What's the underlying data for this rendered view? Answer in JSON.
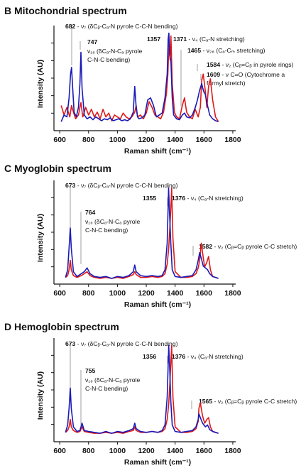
{
  "figure": {
    "panel_tick_labels": [
      "600",
      "800",
      "1000",
      "1200",
      "1400",
      "1600",
      "1800"
    ]
  },
  "chart_data": [
    {
      "type": "line",
      "panel": "B",
      "title": "Mitochondrial spectrum",
      "xlabel": "Raman shift (cm⁻¹)",
      "ylabel": "Intensity (AU)",
      "xlim": [
        560,
        1820
      ],
      "xticks": [
        600,
        800,
        1000,
        1200,
        1400,
        1600,
        1800
      ],
      "series_colors": [
        "#1a1ab8",
        "#e01818"
      ],
      "series": [
        {
          "color": "#1a1ab8",
          "x": [
            610,
            630,
            650,
            665,
            675,
            682,
            690,
            700,
            715,
            730,
            740,
            747,
            755,
            770,
            790,
            810,
            830,
            850,
            870,
            890,
            910,
            930,
            950,
            970,
            990,
            1010,
            1030,
            1050,
            1070,
            1090,
            1110,
            1120,
            1130,
            1140,
            1150,
            1170,
            1190,
            1210,
            1230,
            1250,
            1270,
            1290,
            1310,
            1330,
            1345,
            1352,
            1357,
            1363,
            1371,
            1380,
            1390,
            1410,
            1430,
            1450,
            1465,
            1480,
            1500,
            1520,
            1540,
            1555,
            1570,
            1584,
            1592,
            1600,
            1609,
            1620,
            1640,
            1660,
            1680,
            1700
          ],
          "y": [
            0.05,
            0.12,
            0.1,
            0.3,
            0.55,
            0.62,
            0.4,
            0.15,
            0.1,
            0.2,
            0.45,
            0.78,
            0.4,
            0.12,
            0.08,
            0.1,
            0.07,
            0.1,
            0.08,
            0.06,
            0.08,
            0.07,
            0.09,
            0.06,
            0.07,
            0.08,
            0.06,
            0.07,
            0.06,
            0.08,
            0.15,
            0.42,
            0.2,
            0.1,
            0.08,
            0.09,
            0.12,
            0.28,
            0.3,
            0.22,
            0.1,
            0.12,
            0.14,
            0.3,
            0.55,
            0.92,
            0.98,
            0.75,
            0.68,
            0.3,
            0.12,
            0.08,
            0.07,
            0.12,
            0.14,
            0.1,
            0.09,
            0.12,
            0.2,
            0.28,
            0.38,
            0.45,
            0.4,
            0.36,
            0.34,
            0.25,
            0.12,
            0.08,
            0.06,
            0.05
          ]
        },
        {
          "color": "#e01818",
          "x": [
            610,
            630,
            650,
            670,
            682,
            695,
            710,
            730,
            747,
            760,
            780,
            800,
            820,
            840,
            860,
            880,
            900,
            920,
            940,
            960,
            980,
            1000,
            1020,
            1040,
            1060,
            1080,
            1100,
            1120,
            1130,
            1140,
            1160,
            1180,
            1200,
            1220,
            1240,
            1260,
            1280,
            1300,
            1320,
            1340,
            1350,
            1357,
            1365,
            1371,
            1380,
            1395,
            1410,
            1430,
            1450,
            1465,
            1480,
            1500,
            1520,
            1540,
            1560,
            1575,
            1584,
            1595,
            1609,
            1620,
            1632,
            1645,
            1660,
            1680,
            1700
          ],
          "y": [
            0.22,
            0.12,
            0.2,
            0.1,
            0.22,
            0.15,
            0.08,
            0.12,
            0.25,
            0.1,
            0.2,
            0.12,
            0.18,
            0.1,
            0.15,
            0.08,
            0.18,
            0.1,
            0.14,
            0.06,
            0.12,
            0.1,
            0.08,
            0.14,
            0.1,
            0.08,
            0.1,
            0.15,
            0.22,
            0.1,
            0.12,
            0.08,
            0.14,
            0.26,
            0.2,
            0.12,
            0.1,
            0.08,
            0.15,
            0.35,
            0.55,
            0.88,
            0.7,
            0.95,
            0.45,
            0.15,
            0.1,
            0.08,
            0.22,
            0.3,
            0.15,
            0.1,
            0.08,
            0.18,
            0.1,
            0.2,
            0.48,
            0.55,
            0.38,
            0.2,
            0.42,
            0.5,
            0.28,
            0.1,
            0.05
          ]
        }
      ],
      "annotations": [
        {
          "peak": 682,
          "bold": "682",
          "text": " - ν₇ (δCᵦ-Cₐ-N pyrole C-C-N bending)",
          "line2": ""
        },
        {
          "peak": 747,
          "bold": "747",
          "text": "ν₁₆ (δCₐ-N-Cₐ pyrole",
          "line2": "C-N-C bending)"
        },
        {
          "peak": 1357,
          "bold": "1357",
          "text": "",
          "line2": ""
        },
        {
          "peak": 1371,
          "bold": "1371",
          "text": " - ν₄ (Cₐ-N stretching)",
          "line2": ""
        },
        {
          "peak": 1465,
          "bold": "1465",
          "text": " - ν₂₈ (Cₐ-Cₘ stretching)",
          "line2": ""
        },
        {
          "peak": 1584,
          "bold": "1584",
          "text": " - ν₂ (Cᵦ=Cᵦ in pyrole rings)",
          "line2": ""
        },
        {
          "peak": 1609,
          "bold": "1609",
          "text": " - ν C=O (Cytochrome a",
          "line2": "formyl stretch)"
        }
      ]
    },
    {
      "type": "line",
      "panel": "C",
      "title": "Myoglobin spectrum",
      "xlabel": "Raman shift (cm⁻¹)",
      "ylabel": "Intensity (AU)",
      "xlim": [
        560,
        1820
      ],
      "xticks": [
        600,
        800,
        1000,
        1200,
        1400,
        1600,
        1800
      ],
      "series_colors": [
        "#1a1ab8",
        "#e01818"
      ],
      "series": [
        {
          "color": "#1a1ab8",
          "x": [
            640,
            655,
            665,
            673,
            680,
            695,
            720,
            750,
            770,
            790,
            810,
            840,
            880,
            920,
            960,
            1000,
            1040,
            1080,
            1110,
            1120,
            1130,
            1160,
            1200,
            1240,
            1280,
            1310,
            1330,
            1345,
            1355,
            1362,
            1370,
            1380,
            1400,
            1440,
            1480,
            1520,
            1545,
            1560,
            1570,
            1582,
            1595,
            1610,
            1625,
            1640,
            1660,
            1680,
            1700
          ],
          "y": [
            0.04,
            0.12,
            0.35,
            0.56,
            0.35,
            0.1,
            0.05,
            0.08,
            0.1,
            0.14,
            0.08,
            0.05,
            0.04,
            0.05,
            0.03,
            0.05,
            0.04,
            0.06,
            0.1,
            0.17,
            0.1,
            0.06,
            0.05,
            0.06,
            0.05,
            0.06,
            0.12,
            0.4,
            0.98,
            0.7,
            0.4,
            0.12,
            0.05,
            0.04,
            0.05,
            0.06,
            0.12,
            0.22,
            0.3,
            0.24,
            0.16,
            0.14,
            0.12,
            0.08,
            0.05,
            0.04,
            0.03
          ]
        },
        {
          "color": "#e01818",
          "x": [
            640,
            655,
            665,
            673,
            680,
            695,
            720,
            750,
            770,
            790,
            810,
            840,
            880,
            920,
            960,
            1000,
            1040,
            1080,
            1110,
            1120,
            1130,
            1160,
            1200,
            1240,
            1280,
            1310,
            1330,
            1345,
            1356,
            1363,
            1370,
            1376,
            1385,
            1400,
            1440,
            1480,
            1520,
            1545,
            1560,
            1570,
            1582,
            1592,
            1605,
            1620,
            1632,
            1645,
            1660,
            1680,
            1700
          ],
          "y": [
            0.04,
            0.06,
            0.12,
            0.22,
            0.12,
            0.06,
            0.04,
            0.06,
            0.08,
            0.1,
            0.06,
            0.04,
            0.03,
            0.04,
            0.03,
            0.04,
            0.03,
            0.05,
            0.07,
            0.1,
            0.07,
            0.04,
            0.04,
            0.05,
            0.04,
            0.05,
            0.08,
            0.18,
            0.35,
            0.55,
            0.75,
            0.98,
            0.45,
            0.1,
            0.04,
            0.04,
            0.05,
            0.08,
            0.14,
            0.22,
            0.4,
            0.28,
            0.15,
            0.2,
            0.26,
            0.12,
            0.05,
            0.04,
            0.03
          ]
        }
      ],
      "annotations": [
        {
          "peak": 673,
          "bold": "673",
          "text": " - ν₇ (δCᵦ-Cₐ-N pyrole C-C-N bending)",
          "line2": ""
        },
        {
          "peak": 764,
          "bold": "764",
          "text": "ν₁₆ (δCₐ-N-Cₐ pyrole",
          "line2": "C-N-C bending)"
        },
        {
          "peak": 1355,
          "bold": "1355",
          "text": "",
          "line2": ""
        },
        {
          "peak": 1376,
          "bold": "1376",
          "text": " - ν₄ (Cₐ-N stretching)",
          "line2": ""
        },
        {
          "peak": 1582,
          "bold": "1582",
          "text": " - ν₂ (Cᵦ=Cᵦ pyrole C-C stretch)",
          "line2": ""
        }
      ]
    },
    {
      "type": "line",
      "panel": "D",
      "title": "Hemoglobin spectrum",
      "xlabel": "Raman shift (cm⁻¹)",
      "ylabel": "Intensity (AU)",
      "xlim": [
        560,
        1820
      ],
      "xticks": [
        600,
        800,
        1000,
        1200,
        1400,
        1600,
        1800
      ],
      "series_colors": [
        "#1a1ab8",
        "#e01818"
      ],
      "series": [
        {
          "color": "#1a1ab8",
          "x": [
            640,
            655,
            665,
            673,
            680,
            695,
            720,
            740,
            755,
            770,
            800,
            840,
            880,
            920,
            960,
            1000,
            1040,
            1080,
            1110,
            1120,
            1130,
            1160,
            1200,
            1240,
            1280,
            1310,
            1330,
            1345,
            1356,
            1363,
            1370,
            1380,
            1400,
            1440,
            1480,
            1520,
            1545,
            1560,
            1565,
            1575,
            1590,
            1610,
            1625,
            1640,
            1660,
            1680,
            1700
          ],
          "y": [
            0.04,
            0.12,
            0.3,
            0.52,
            0.3,
            0.1,
            0.05,
            0.06,
            0.14,
            0.06,
            0.05,
            0.04,
            0.03,
            0.05,
            0.03,
            0.05,
            0.04,
            0.06,
            0.08,
            0.14,
            0.08,
            0.05,
            0.04,
            0.05,
            0.04,
            0.06,
            0.12,
            0.42,
            0.98,
            0.72,
            0.38,
            0.12,
            0.05,
            0.04,
            0.05,
            0.06,
            0.1,
            0.18,
            0.24,
            0.2,
            0.14,
            0.1,
            0.12,
            0.07,
            0.05,
            0.04,
            0.03
          ]
        },
        {
          "color": "#e01818",
          "x": [
            640,
            655,
            665,
            673,
            680,
            695,
            720,
            740,
            755,
            770,
            800,
            840,
            880,
            920,
            960,
            1000,
            1040,
            1080,
            1110,
            1120,
            1130,
            1160,
            1200,
            1240,
            1280,
            1310,
            1330,
            1345,
            1356,
            1363,
            1370,
            1376,
            1385,
            1400,
            1440,
            1480,
            1520,
            1545,
            1560,
            1565,
            1575,
            1590,
            1605,
            1620,
            1632,
            1645,
            1660,
            1680,
            1700
          ],
          "y": [
            0.04,
            0.06,
            0.1,
            0.18,
            0.1,
            0.06,
            0.04,
            0.05,
            0.1,
            0.05,
            0.04,
            0.03,
            0.03,
            0.04,
            0.03,
            0.04,
            0.03,
            0.05,
            0.06,
            0.1,
            0.06,
            0.04,
            0.04,
            0.05,
            0.04,
            0.05,
            0.08,
            0.18,
            0.35,
            0.55,
            0.78,
            0.98,
            0.42,
            0.1,
            0.04,
            0.04,
            0.05,
            0.08,
            0.16,
            0.3,
            0.36,
            0.22,
            0.14,
            0.18,
            0.2,
            0.1,
            0.05,
            0.04,
            0.03
          ]
        }
      ],
      "annotations": [
        {
          "peak": 673,
          "bold": "673",
          "text": " - ν₇ (δCᵦ-Cₐ-N pyrole C-C-N bending)",
          "line2": ""
        },
        {
          "peak": 755,
          "bold": "755",
          "text": "ν₁₆ (δCₐ-N-Cₐ pyrole",
          "line2": "C-N-C bending)"
        },
        {
          "peak": 1356,
          "bold": "1356",
          "text": "",
          "line2": ""
        },
        {
          "peak": 1376,
          "bold": "1376",
          "text": " - ν₄ (Cₐ-N stretching)",
          "line2": ""
        },
        {
          "peak": 1565,
          "bold": "1565",
          "text": " - ν₂ (Cᵦ=Cᵦ pyrole C-C stretch)",
          "line2": ""
        }
      ]
    }
  ]
}
